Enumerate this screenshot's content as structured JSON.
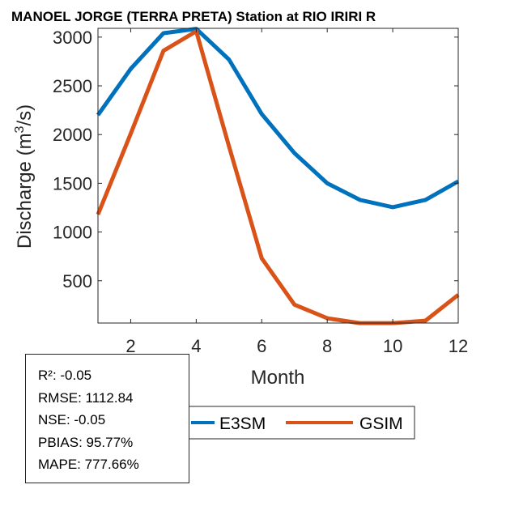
{
  "chart_data": {
    "type": "line",
    "title": "MANOEL JORGE  (TERRA PRETA)  Station at  RIO IRIRI  R",
    "xlabel": "Month",
    "ylabel": "Discharge (m",
    "ylabel_sup": "3",
    "ylabel_end": "/s)",
    "xlim": [
      1,
      12
    ],
    "ylim": [
      66,
      3090
    ],
    "xticks": [
      2,
      4,
      6,
      8,
      10,
      12
    ],
    "yticks": [
      500,
      1000,
      1500,
      2000,
      2500,
      3000
    ],
    "x": [
      1,
      2,
      3,
      4,
      5,
      6,
      7,
      8,
      9,
      10,
      11,
      12
    ],
    "series": [
      {
        "name": "E3SM",
        "color": "#0072BD",
        "values": [
          2200,
          2675,
          3040,
          3085,
          2770,
          2210,
          1810,
          1500,
          1330,
          1255,
          1330,
          1520
        ]
      },
      {
        "name": "GSIM",
        "color": "#D95319",
        "values": [
          1180,
          2010,
          2860,
          3060,
          1880,
          730,
          255,
          115,
          65,
          65,
          90,
          355
        ]
      }
    ],
    "grid": false,
    "legend": "bottom-center, horizontal"
  },
  "stats": {
    "r2": "R²: -0.05",
    "rmse": "RMSE: 1112.84",
    "nse": "NSE: -0.05",
    "pbias": "PBIAS: 95.77%",
    "mape": "MAPE: 777.66%"
  }
}
